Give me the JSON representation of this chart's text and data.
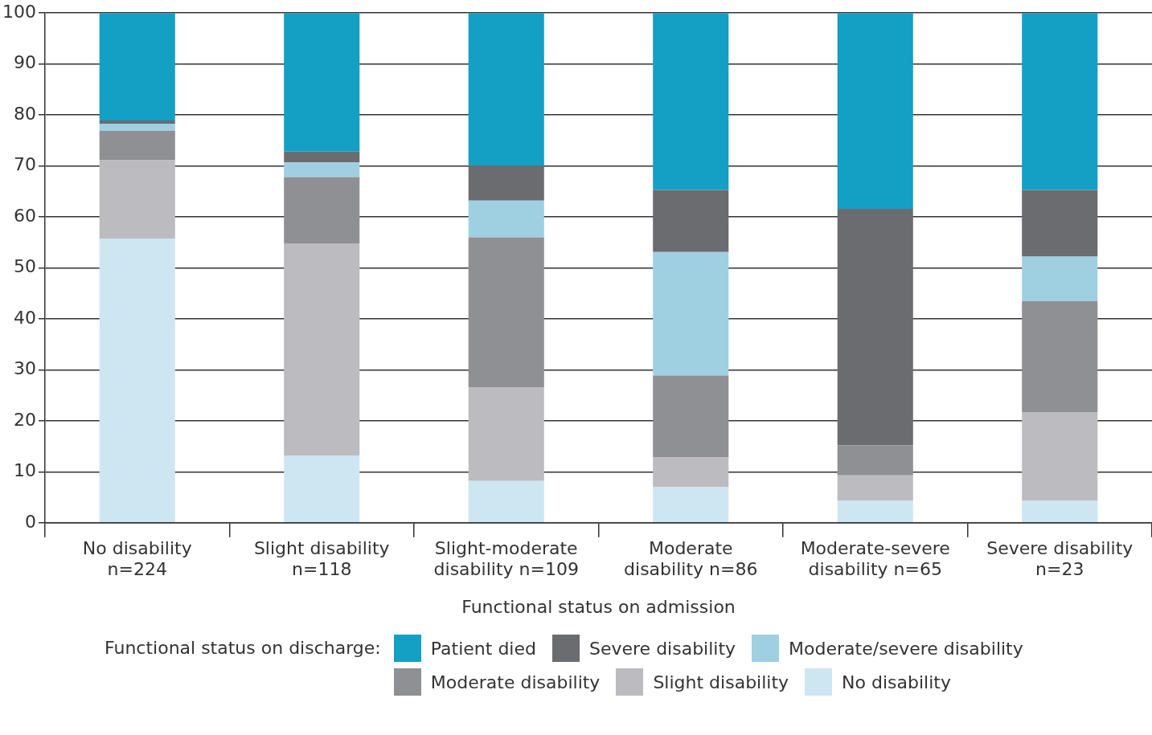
{
  "chart_data": {
    "type": "bar",
    "stacked": true,
    "xlabel": "Functional status on admission",
    "legend_title": "Functional status on discharge:",
    "legend": "bottom",
    "grid": "y",
    "categories": [
      "No disability n=224",
      "Slight disability n=118",
      "Slight-moderate disability n=109",
      "Moderate disability n=86",
      "Moderate-severe disability n=65",
      "Severe disability n=23"
    ],
    "ylim": [
      0,
      100
    ],
    "yticks": [
      0,
      10,
      20,
      30,
      40,
      50,
      60,
      70,
      80,
      90,
      100
    ],
    "series": [
      {
        "name": "No disability",
        "color": "#cde6f2",
        "values": [
          55.7,
          13.2,
          8.2,
          7.0,
          4.3,
          4.3
        ]
      },
      {
        "name": "Slight disability",
        "color": "#bcbcc0",
        "values": [
          15.4,
          41.6,
          18.4,
          5.8,
          5.0,
          17.4
        ]
      },
      {
        "name": "Moderate disability",
        "color": "#8f9094",
        "values": [
          5.8,
          13.0,
          29.4,
          16.1,
          5.9,
          21.8
        ]
      },
      {
        "name": "Moderate/severe disability",
        "color": "#9ed0e2",
        "values": [
          1.4,
          2.9,
          7.2,
          24.2,
          0,
          8.7
        ]
      },
      {
        "name": "Severe disability",
        "color": "#6b6c70",
        "values": [
          0.6,
          2.1,
          6.9,
          12.2,
          46.4,
          13.1
        ]
      },
      {
        "name": "Patient died",
        "color": "#149fc4",
        "values": [
          21.1,
          27.2,
          29.9,
          34.7,
          38.4,
          34.7
        ]
      }
    ]
  }
}
